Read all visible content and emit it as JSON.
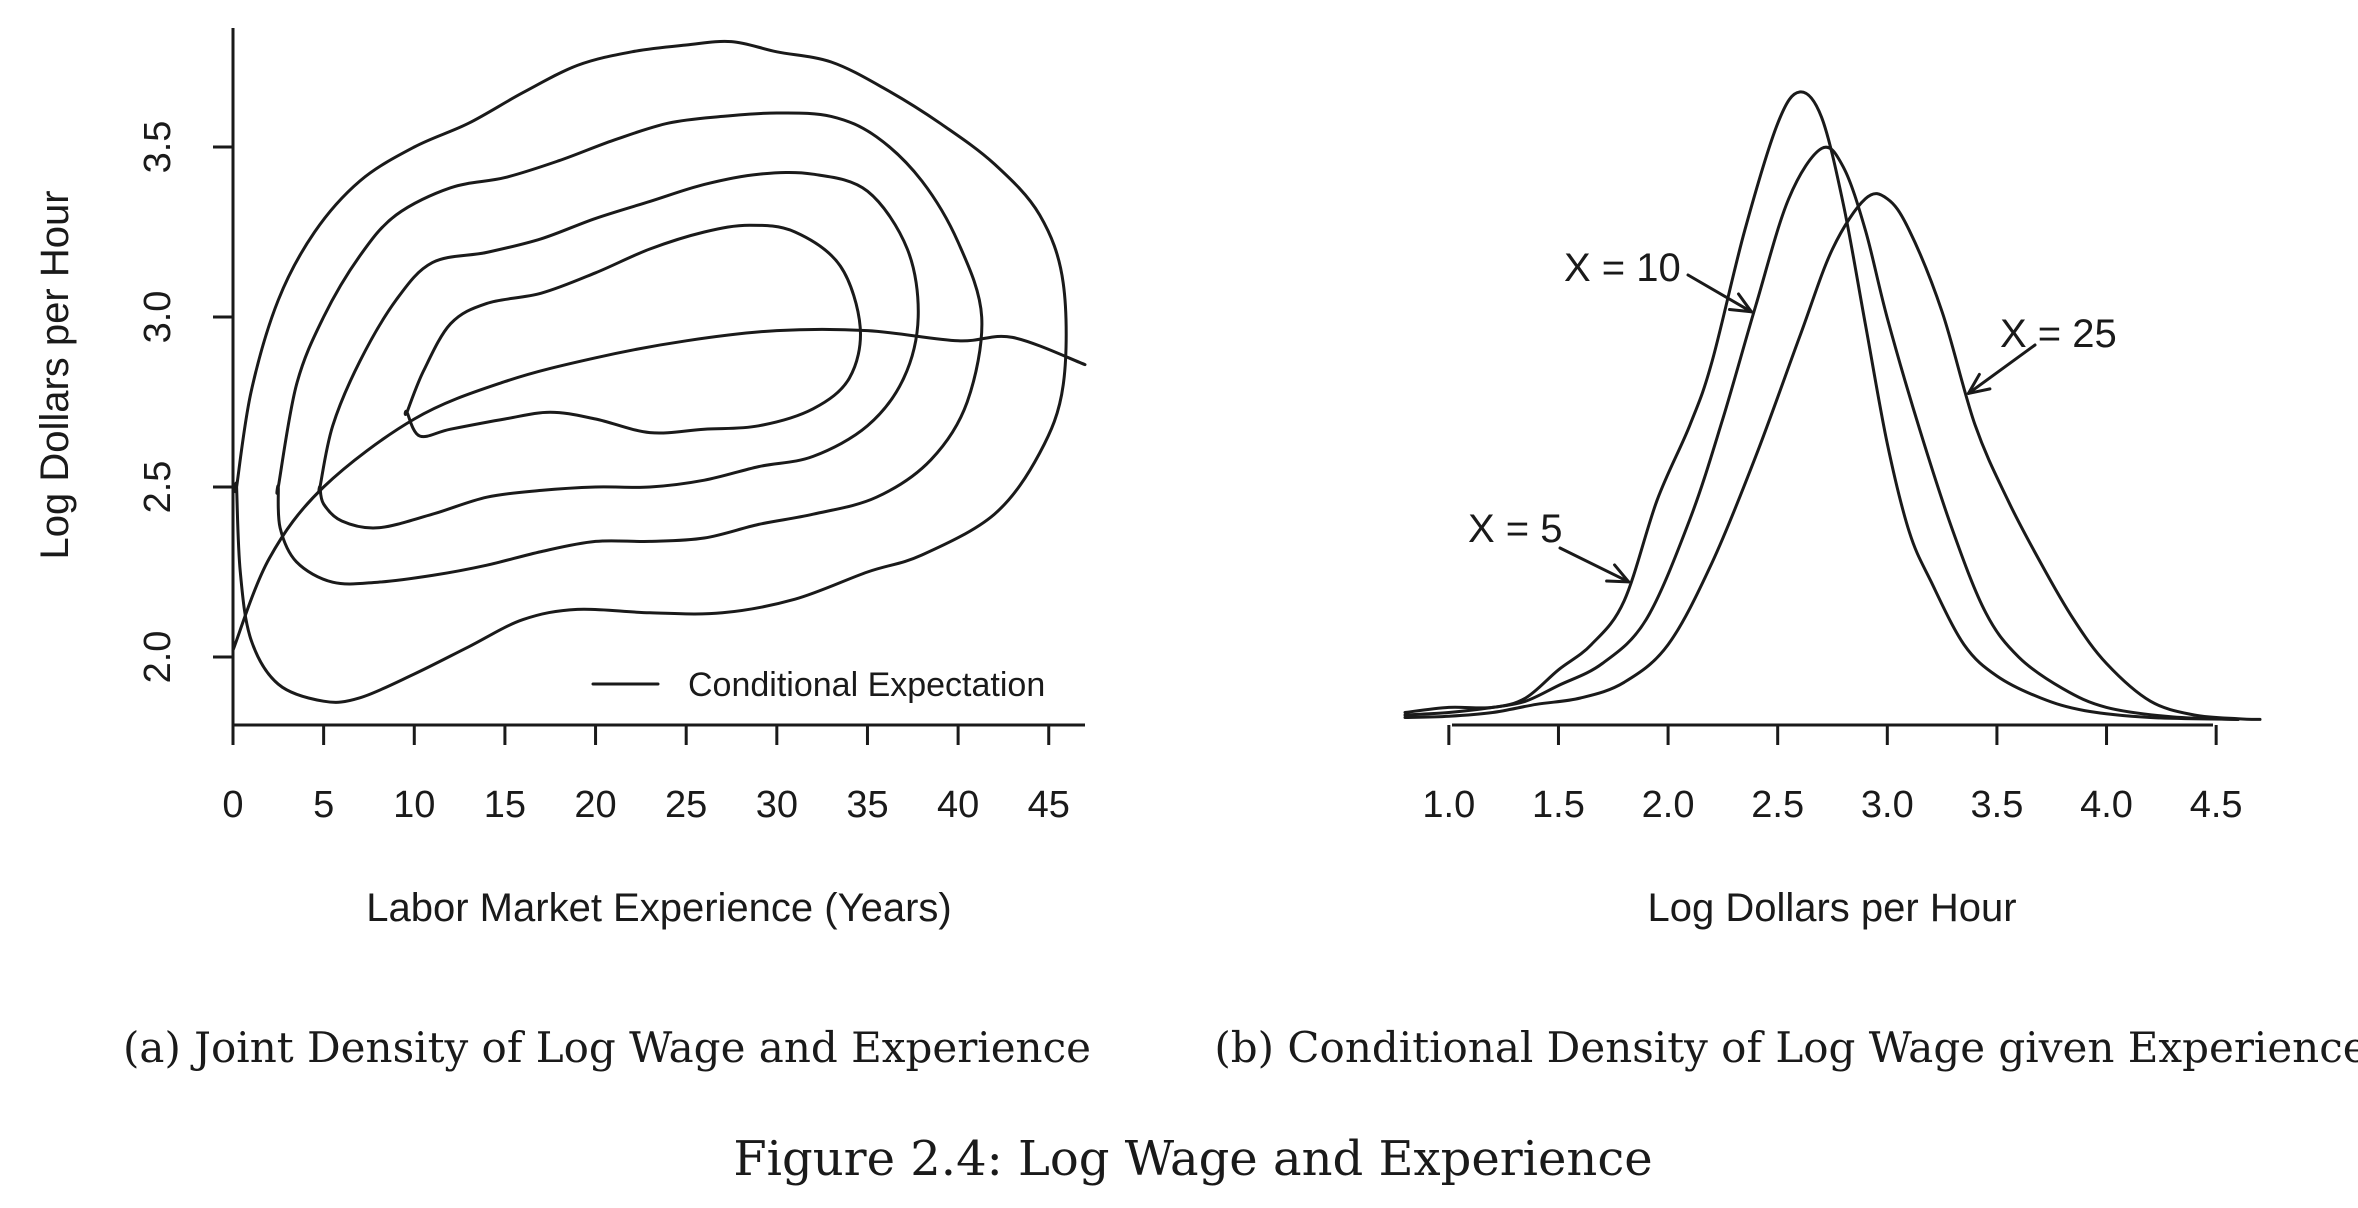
{
  "figure_caption": "Figure 2.4: Log Wage and Experience",
  "chart_data": [
    {
      "type": "contour",
      "caption": "(a) Joint Density of Log Wage and Experience",
      "xlabel": "Labor Market Experience (Years)",
      "ylabel": "Log Dollars per Hour",
      "xlim": [
        0,
        47
      ],
      "ylim": [
        1.8,
        3.85
      ],
      "x_ticks": [
        0,
        5,
        10,
        15,
        20,
        25,
        30,
        35,
        40,
        45
      ],
      "y_ticks": [
        2.0,
        2.5,
        3.0,
        3.5
      ],
      "x_tick_labels": [
        "0",
        "5",
        "10",
        "15",
        "20",
        "25",
        "30",
        "35",
        "40",
        "45"
      ],
      "y_tick_labels": [
        "2.0",
        "2.5",
        "3.0",
        "3.5"
      ],
      "legend": {
        "label": "Conditional Expectation",
        "placement": "bottom-right"
      },
      "contours": [
        {
          "level": 1,
          "points": [
            [
              0.2,
              2.5
            ],
            [
              1,
              2.78
            ],
            [
              2.5,
              3.05
            ],
            [
              4.5,
              3.25
            ],
            [
              7,
              3.4
            ],
            [
              10,
              3.5
            ],
            [
              13,
              3.57
            ],
            [
              16,
              3.66
            ],
            [
              19,
              3.74
            ],
            [
              22,
              3.78
            ],
            [
              25,
              3.8
            ],
            [
              27.5,
              3.81
            ],
            [
              30,
              3.78
            ],
            [
              33,
              3.75
            ],
            [
              36,
              3.67
            ],
            [
              39,
              3.57
            ],
            [
              42,
              3.45
            ],
            [
              44.5,
              3.3
            ],
            [
              45.8,
              3.1
            ],
            [
              45.8,
              2.8
            ],
            [
              44.5,
              2.6
            ],
            [
              42,
              2.42
            ],
            [
              38,
              2.3
            ],
            [
              35,
              2.25
            ],
            [
              31,
              2.17
            ],
            [
              27,
              2.13
            ],
            [
              23,
              2.13
            ],
            [
              19,
              2.14
            ],
            [
              16,
              2.11
            ],
            [
              13,
              2.03
            ],
            [
              10,
              1.95
            ],
            [
              7,
              1.88
            ],
            [
              5,
              1.87
            ],
            [
              2.5,
              1.92
            ],
            [
              1,
              2.05
            ],
            [
              0.4,
              2.25
            ],
            [
              0.2,
              2.5
            ]
          ]
        },
        {
          "level": 2,
          "points": [
            [
              2.5,
              2.5
            ],
            [
              3.5,
              2.8
            ],
            [
              5,
              3.0
            ],
            [
              7,
              3.18
            ],
            [
              9,
              3.3
            ],
            [
              12,
              3.38
            ],
            [
              15,
              3.41
            ],
            [
              18,
              3.46
            ],
            [
              21,
              3.52
            ],
            [
              24,
              3.57
            ],
            [
              27,
              3.59
            ],
            [
              30,
              3.6
            ],
            [
              33,
              3.59
            ],
            [
              35.5,
              3.53
            ],
            [
              38,
              3.4
            ],
            [
              40,
              3.22
            ],
            [
              41.3,
              3.0
            ],
            [
              40.5,
              2.75
            ],
            [
              38.5,
              2.58
            ],
            [
              35.5,
              2.47
            ],
            [
              32,
              2.42
            ],
            [
              29,
              2.39
            ],
            [
              26,
              2.35
            ],
            [
              23,
              2.34
            ],
            [
              20,
              2.34
            ],
            [
              17,
              2.31
            ],
            [
              14,
              2.27
            ],
            [
              11,
              2.24
            ],
            [
              8,
              2.22
            ],
            [
              5.5,
              2.22
            ],
            [
              3.5,
              2.28
            ],
            [
              2.6,
              2.38
            ],
            [
              2.5,
              2.5
            ]
          ]
        },
        {
          "level": 3,
          "points": [
            [
              4.8,
              2.5
            ],
            [
              5.5,
              2.68
            ],
            [
              7,
              2.87
            ],
            [
              9,
              3.05
            ],
            [
              11,
              3.16
            ],
            [
              14,
              3.19
            ],
            [
              17,
              3.23
            ],
            [
              20,
              3.29
            ],
            [
              23,
              3.34
            ],
            [
              26,
              3.39
            ],
            [
              29,
              3.42
            ],
            [
              32,
              3.42
            ],
            [
              35,
              3.37
            ],
            [
              37.2,
              3.2
            ],
            [
              37.8,
              3.0
            ],
            [
              37,
              2.82
            ],
            [
              35,
              2.68
            ],
            [
              32,
              2.59
            ],
            [
              29,
              2.56
            ],
            [
              26,
              2.52
            ],
            [
              23,
              2.5
            ],
            [
              20,
              2.5
            ],
            [
              17,
              2.49
            ],
            [
              14,
              2.47
            ],
            [
              11,
              2.42
            ],
            [
              8,
              2.38
            ],
            [
              6,
              2.4
            ],
            [
              5,
              2.45
            ],
            [
              4.8,
              2.5
            ]
          ]
        },
        {
          "level": 4,
          "points": [
            [
              9.6,
              2.72
            ],
            [
              10.5,
              2.84
            ],
            [
              12,
              2.98
            ],
            [
              14,
              3.04
            ],
            [
              17,
              3.07
            ],
            [
              20,
              3.13
            ],
            [
              23,
              3.2
            ],
            [
              26,
              3.25
            ],
            [
              28.5,
              3.27
            ],
            [
              31,
              3.25
            ],
            [
              33.5,
              3.15
            ],
            [
              34.6,
              2.97
            ],
            [
              34,
              2.82
            ],
            [
              32,
              2.73
            ],
            [
              29,
              2.68
            ],
            [
              26,
              2.67
            ],
            [
              23,
              2.66
            ],
            [
              20,
              2.7
            ],
            [
              17.5,
              2.72
            ],
            [
              15,
              2.7
            ],
            [
              12,
              2.67
            ],
            [
              10.3,
              2.65
            ],
            [
              9.6,
              2.72
            ]
          ]
        }
      ],
      "conditional_expectation": {
        "label": "Conditional Expectation",
        "points": [
          [
            0,
            2.02
          ],
          [
            2,
            2.29
          ],
          [
            5,
            2.5
          ],
          [
            10,
            2.7
          ],
          [
            15,
            2.81
          ],
          [
            20,
            2.88
          ],
          [
            25,
            2.93
          ],
          [
            30,
            2.96
          ],
          [
            35,
            2.96
          ],
          [
            40,
            2.93
          ],
          [
            43,
            2.94
          ],
          [
            47,
            2.86
          ]
        ]
      }
    },
    {
      "type": "line",
      "caption": "(b) Conditional Density of Log Wage given Experience",
      "xlabel": "Log Dollars per Hour",
      "ylabel": "",
      "xlim": [
        0.8,
        4.7
      ],
      "x_ticks": [
        1.0,
        1.5,
        2.0,
        2.5,
        3.0,
        3.5,
        4.0,
        4.5
      ],
      "x_tick_labels": [
        "1.0",
        "1.5",
        "2.0",
        "2.5",
        "3.0",
        "3.5",
        "4.0",
        "4.5"
      ],
      "ylim": [
        0,
        1.0
      ],
      "series": [
        {
          "name": "X = 5",
          "points": [
            [
              0.8,
              0.012
            ],
            [
              1.0,
              0.02
            ],
            [
              1.2,
              0.02
            ],
            [
              1.35,
              0.035
            ],
            [
              1.5,
              0.08
            ],
            [
              1.65,
              0.12
            ],
            [
              1.8,
              0.19
            ],
            [
              1.95,
              0.35
            ],
            [
              2.1,
              0.47
            ],
            [
              2.2,
              0.57
            ],
            [
              2.35,
              0.78
            ],
            [
              2.5,
              0.95
            ],
            [
              2.6,
              1.0
            ],
            [
              2.7,
              0.96
            ],
            [
              2.8,
              0.82
            ],
            [
              2.9,
              0.63
            ],
            [
              3.0,
              0.44
            ],
            [
              3.1,
              0.3
            ],
            [
              3.2,
              0.22
            ],
            [
              3.35,
              0.12
            ],
            [
              3.5,
              0.07
            ],
            [
              3.7,
              0.035
            ],
            [
              3.9,
              0.015
            ],
            [
              4.2,
              0.004
            ],
            [
              4.6,
              0.001
            ]
          ]
        },
        {
          "name": "X = 10",
          "points": [
            [
              0.8,
              0.008
            ],
            [
              1.0,
              0.012
            ],
            [
              1.2,
              0.02
            ],
            [
              1.35,
              0.03
            ],
            [
              1.5,
              0.055
            ],
            [
              1.7,
              0.09
            ],
            [
              1.9,
              0.16
            ],
            [
              2.1,
              0.32
            ],
            [
              2.25,
              0.48
            ],
            [
              2.4,
              0.66
            ],
            [
              2.55,
              0.83
            ],
            [
              2.7,
              0.91
            ],
            [
              2.8,
              0.88
            ],
            [
              2.9,
              0.78
            ],
            [
              3.0,
              0.64
            ],
            [
              3.15,
              0.46
            ],
            [
              3.3,
              0.3
            ],
            [
              3.45,
              0.17
            ],
            [
              3.6,
              0.1
            ],
            [
              3.8,
              0.05
            ],
            [
              4.0,
              0.02
            ],
            [
              4.3,
              0.005
            ],
            [
              4.6,
              0.001
            ]
          ]
        },
        {
          "name": "X = 25",
          "points": [
            [
              0.8,
              0.004
            ],
            [
              1.0,
              0.006
            ],
            [
              1.2,
              0.012
            ],
            [
              1.4,
              0.025
            ],
            [
              1.6,
              0.035
            ],
            [
              1.8,
              0.06
            ],
            [
              2.0,
              0.12
            ],
            [
              2.2,
              0.25
            ],
            [
              2.4,
              0.42
            ],
            [
              2.6,
              0.61
            ],
            [
              2.75,
              0.75
            ],
            [
              2.9,
              0.83
            ],
            [
              3.0,
              0.83
            ],
            [
              3.1,
              0.78
            ],
            [
              3.25,
              0.65
            ],
            [
              3.4,
              0.47
            ],
            [
              3.55,
              0.35
            ],
            [
              3.7,
              0.25
            ],
            [
              3.85,
              0.16
            ],
            [
              4.0,
              0.09
            ],
            [
              4.2,
              0.03
            ],
            [
              4.4,
              0.008
            ],
            [
              4.6,
              0.002
            ],
            [
              4.7,
              0.001
            ]
          ]
        }
      ],
      "annotations": [
        {
          "text": "X = 5",
          "series": "X = 5",
          "arrow_to": [
            1.82,
            0.22
          ]
        },
        {
          "text": "X = 10",
          "series": "X = 10",
          "arrow_to": [
            2.38,
            0.65
          ]
        },
        {
          "text": "X = 25",
          "series": "X = 25",
          "arrow_to": [
            3.37,
            0.52
          ]
        }
      ]
    }
  ]
}
